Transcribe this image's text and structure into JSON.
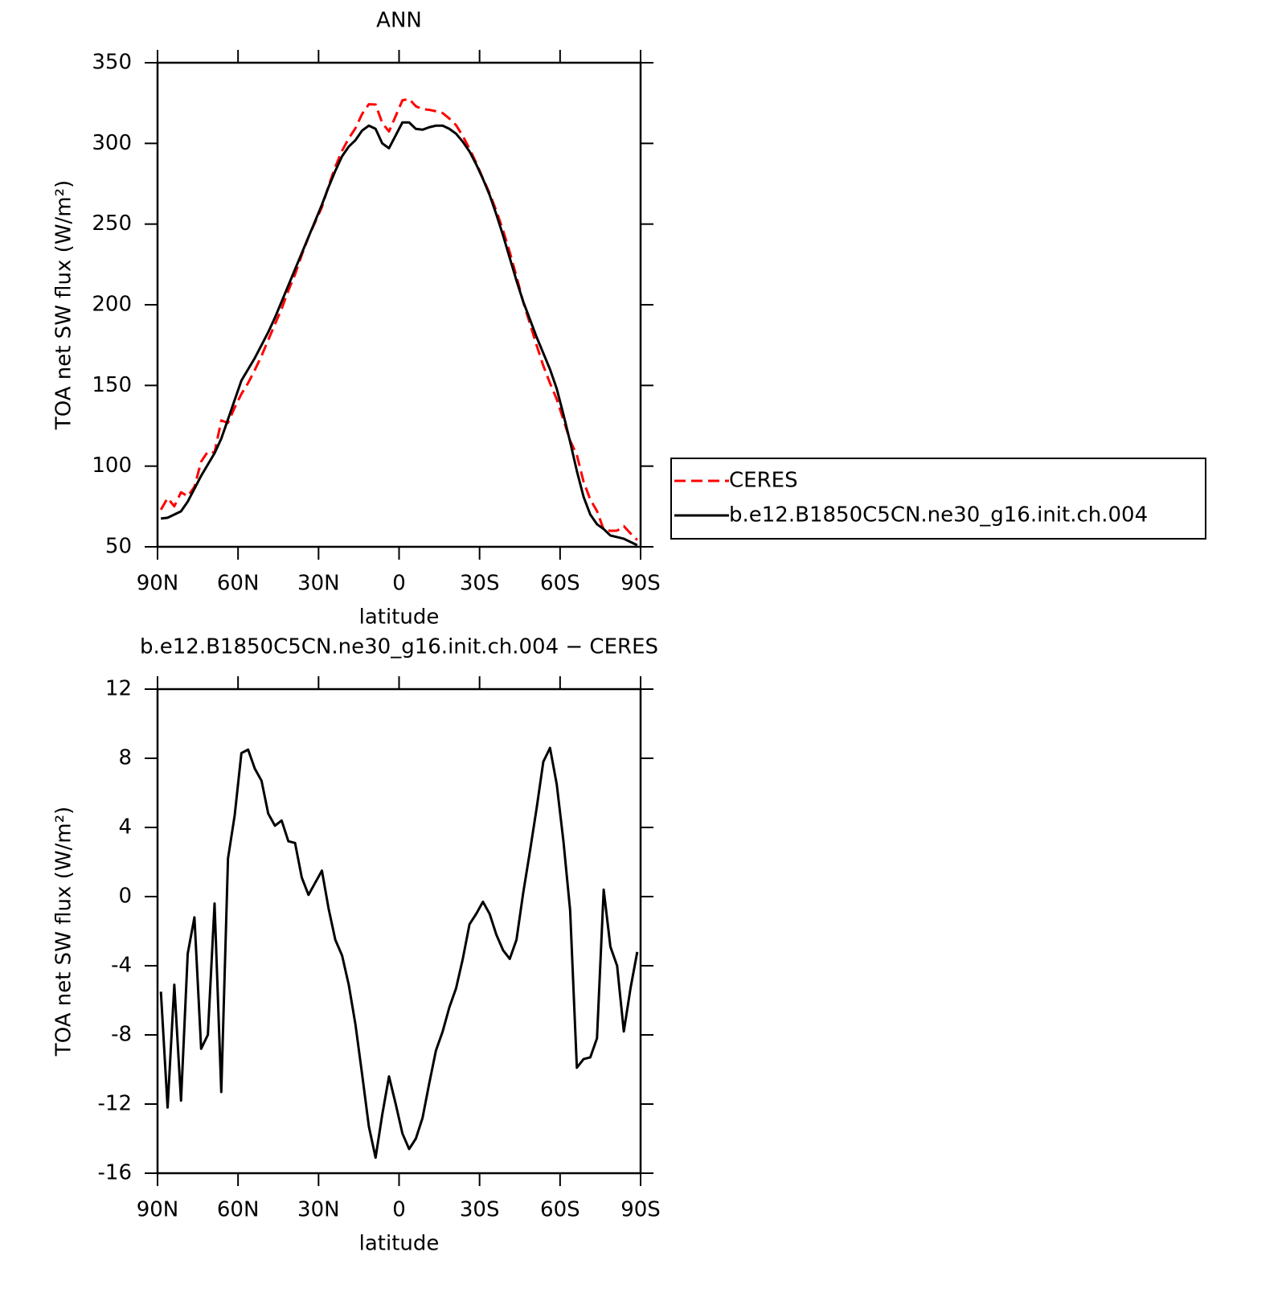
{
  "chart_data": [
    {
      "type": "line",
      "title": "ANN",
      "xlabel": "latitude",
      "ylabel": "TOA net SW flux (W/m²)",
      "x": [
        88.75,
        86.25,
        83.75,
        81.25,
        78.75,
        76.25,
        73.75,
        71.25,
        68.75,
        66.25,
        63.75,
        61.25,
        58.75,
        56.25,
        53.75,
        51.25,
        48.75,
        46.25,
        43.75,
        41.25,
        38.75,
        36.25,
        33.75,
        31.25,
        28.75,
        26.25,
        23.75,
        21.25,
        18.75,
        16.25,
        13.75,
        11.25,
        8.75,
        6.25,
        3.75,
        1.25,
        -1.25,
        -3.75,
        -6.25,
        -8.75,
        -11.25,
        -13.75,
        -16.25,
        -18.75,
        -21.25,
        -23.75,
        -26.25,
        -28.75,
        -31.25,
        -33.75,
        -36.25,
        -38.75,
        -41.25,
        -43.75,
        -46.25,
        -48.75,
        -51.25,
        -53.75,
        -56.25,
        -58.75,
        -61.25,
        -63.75,
        -66.25,
        -68.75,
        -71.25,
        -73.75,
        -76.25,
        -78.75,
        -81.25,
        -83.75,
        -86.25,
        -88.75
      ],
      "series": [
        {
          "name": "CERES",
          "color": "#ff0000",
          "dash": true,
          "values": [
            73,
            80.2,
            75.1,
            83.8,
            81.3,
            87.2,
            102.8,
            109,
            108.4,
            128.3,
            126.8,
            136.3,
            144.7,
            151.5,
            159.6,
            168.3,
            178.2,
            187.9,
            197.6,
            208.8,
            218.9,
            230.9,
            241.9,
            251.2,
            260.5,
            273.7,
            285.5,
            295.4,
            303.1,
            309.4,
            318.3,
            324.3,
            324.1,
            312.6,
            307.4,
            317,
            326.7,
            327.6,
            323,
            321.3,
            320.8,
            319.9,
            318.8,
            315.4,
            311.3,
            304.6,
            296.6,
            288,
            278.3,
            269,
            258.2,
            246.1,
            232.6,
            217.5,
            201.8,
            188.4,
            174.9,
            162.2,
            151.4,
            141.5,
            128.8,
            115.8,
            106.9,
            90.4,
            79.3,
            72.2,
            60.6,
            59.9,
            60,
            62.8,
            58.3,
            54.2
          ]
        },
        {
          "name": "b.e12.B1850C5CN.ne30_g16.init.ch.004",
          "color": "#000000",
          "dash": false,
          "values": [
            67.5,
            68,
            70,
            72,
            78,
            86,
            94,
            101,
            108,
            117,
            129,
            141,
            153,
            160,
            167,
            175,
            183,
            192,
            202,
            212,
            222,
            232,
            242,
            252,
            262,
            273,
            283,
            292,
            298,
            302,
            308,
            311,
            309,
            300,
            297,
            305,
            313,
            313,
            309,
            308.5,
            310,
            311,
            311,
            309,
            306,
            301,
            295,
            287,
            278,
            268,
            256,
            243,
            229,
            215,
            202,
            191,
            180,
            170,
            160,
            148,
            132,
            115,
            97,
            81,
            70,
            64,
            61,
            57,
            56,
            55,
            53,
            51
          ]
        }
      ],
      "xlim": [
        90,
        -90
      ],
      "xticks": [
        {
          "value": 90,
          "label": "90N"
        },
        {
          "value": 60,
          "label": "60N"
        },
        {
          "value": 30,
          "label": "30N"
        },
        0,
        {
          "value": -30,
          "label": "30S"
        },
        {
          "value": -60,
          "label": "60S"
        },
        {
          "value": -90,
          "label": "90S"
        }
      ],
      "ylim": [
        50,
        350
      ],
      "yticks": [
        50,
        100,
        150,
        200,
        250,
        300,
        350
      ],
      "legend": "outside-right"
    },
    {
      "type": "line",
      "title": "b.e12.B1850C5CN.ne30_g16.init.ch.004 − CERES",
      "xlabel": "latitude",
      "ylabel": "TOA net SW flux (W/m²)",
      "x": [
        88.75,
        86.25,
        83.75,
        81.25,
        78.75,
        76.25,
        73.75,
        71.25,
        68.75,
        66.25,
        63.75,
        61.25,
        58.75,
        56.25,
        53.75,
        51.25,
        48.75,
        46.25,
        43.75,
        41.25,
        38.75,
        36.25,
        33.75,
        31.25,
        28.75,
        26.25,
        23.75,
        21.25,
        18.75,
        16.25,
        13.75,
        11.25,
        8.75,
        6.25,
        3.75,
        1.25,
        -1.25,
        -3.75,
        -6.25,
        -8.75,
        -11.25,
        -13.75,
        -16.25,
        -18.75,
        -21.25,
        -23.75,
        -26.25,
        -28.75,
        -31.25,
        -33.75,
        -36.25,
        -38.75,
        -41.25,
        -43.75,
        -46.25,
        -48.75,
        -51.25,
        -53.75,
        -56.25,
        -58.75,
        -61.25,
        -63.75,
        -66.25,
        -68.75,
        -71.25,
        -73.75,
        -76.25,
        -78.75,
        -81.25,
        -83.75,
        -86.25,
        -88.75
      ],
      "series": [
        {
          "color": "#000000",
          "dash": false,
          "values": [
            -5.5,
            -12.2,
            -5.1,
            -11.8,
            -3.3,
            -1.2,
            -8.8,
            -8,
            -0.4,
            -11.3,
            2.2,
            4.7,
            8.3,
            8.5,
            7.4,
            6.7,
            4.8,
            4.1,
            4.4,
            3.2,
            3.1,
            1.1,
            0.1,
            0.8,
            1.5,
            -0.7,
            -2.5,
            -3.4,
            -5.1,
            -7.4,
            -10.3,
            -13.3,
            -15.1,
            -12.6,
            -10.4,
            -12,
            -13.7,
            -14.6,
            -14,
            -12.8,
            -10.8,
            -8.9,
            -7.8,
            -6.4,
            -5.3,
            -3.6,
            -1.6,
            -1,
            -0.3,
            -1,
            -2.2,
            -3.1,
            -3.6,
            -2.5,
            0.2,
            2.6,
            5.1,
            7.8,
            8.6,
            6.5,
            3.2,
            -0.8,
            -9.9,
            -9.4,
            -9.3,
            -8.2,
            0.4,
            -2.9,
            -4,
            -7.8,
            -5.3,
            -3.2
          ]
        }
      ],
      "xlim": [
        90,
        -90
      ],
      "xticks": [
        {
          "value": 90,
          "label": "90N"
        },
        {
          "value": 60,
          "label": "60N"
        },
        {
          "value": 30,
          "label": "30N"
        },
        0,
        {
          "value": -30,
          "label": "30S"
        },
        {
          "value": -60,
          "label": "60S"
        },
        {
          "value": -90,
          "label": "90S"
        }
      ],
      "ylim": [
        -16,
        12
      ],
      "yticks": [
        -16,
        -12,
        -8,
        -4,
        0,
        4,
        8,
        12
      ]
    }
  ]
}
